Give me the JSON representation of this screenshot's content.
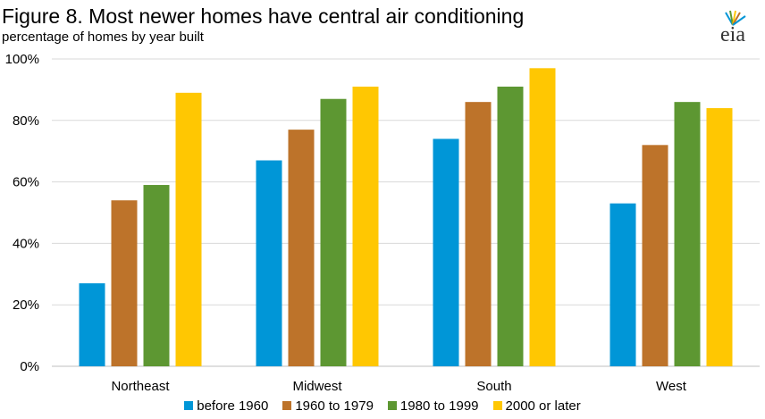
{
  "header": {
    "title": "Figure 8. Most newer homes have central air conditioning",
    "subtitle": "percentage of homes by year built",
    "logo_text": "eia"
  },
  "chart_data": {
    "type": "bar",
    "categories": [
      "Northeast",
      "Midwest",
      "South",
      "West"
    ],
    "series": [
      {
        "name": "before 1960",
        "color": "#0096d7",
        "values": [
          27,
          67,
          74,
          53
        ]
      },
      {
        "name": "1960 to 1979",
        "color": "#bd732a",
        "values": [
          54,
          77,
          86,
          72
        ]
      },
      {
        "name": "1980 to 1999",
        "color": "#5d9732",
        "values": [
          59,
          87,
          91,
          86
        ]
      },
      {
        "name": "2000 or later",
        "color": "#ffc702",
        "values": [
          89,
          91,
          97,
          84
        ]
      }
    ],
    "y_ticks": [
      "0%",
      "20%",
      "40%",
      "60%",
      "80%",
      "100%"
    ],
    "ylim": [
      0,
      100
    ],
    "grid": true,
    "legend_position": "bottom"
  }
}
